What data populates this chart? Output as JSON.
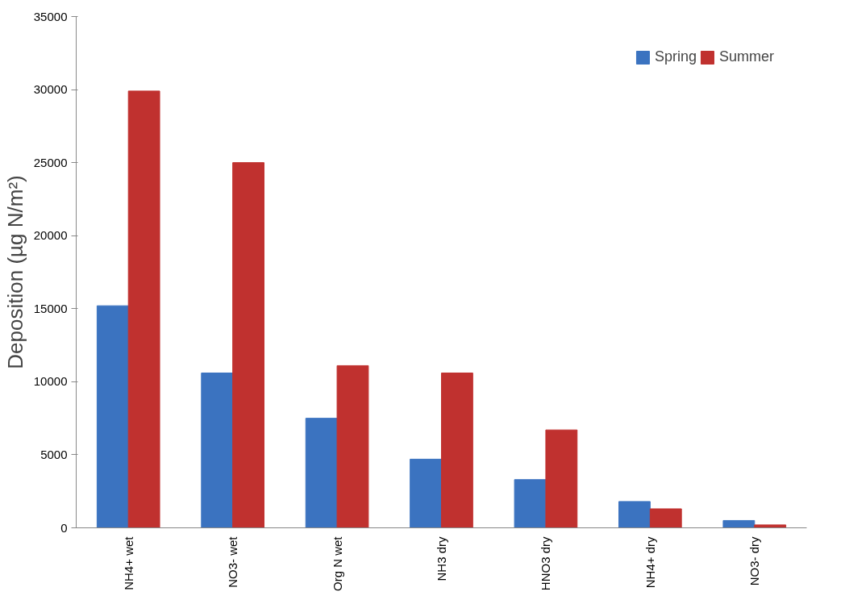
{
  "chart_data": {
    "type": "bar",
    "ylabel": "Deposition (µg N/m²)",
    "categories": [
      "NH4+ wet",
      "NO3- wet",
      "Org N wet",
      "NH3 dry",
      "HNO3 dry",
      "NH4+ dry",
      "NO3- dry"
    ],
    "series": [
      {
        "name": "Spring",
        "color": "#3b73c0",
        "values": [
          15200,
          10600,
          7500,
          4700,
          3300,
          1800,
          500
        ]
      },
      {
        "name": "Summer",
        "color": "#c0312f",
        "values": [
          29900,
          25000,
          11100,
          10600,
          6700,
          1300,
          200
        ]
      }
    ],
    "ylim": [
      0,
      35000
    ],
    "yticks": [
      0,
      5000,
      10000,
      15000,
      20000,
      25000,
      30000,
      35000
    ],
    "grid": false,
    "legend": "top right"
  }
}
